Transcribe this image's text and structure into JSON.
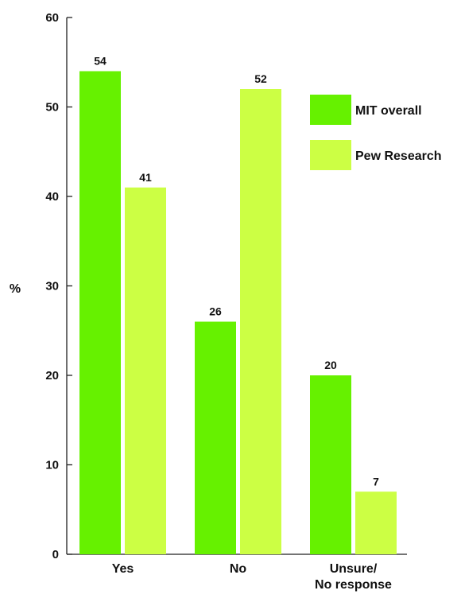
{
  "chart_data": {
    "type": "bar",
    "ylabel": "%",
    "xlabel": "",
    "ylim": [
      0,
      60
    ],
    "yticks": [
      0,
      10,
      20,
      30,
      40,
      50,
      60
    ],
    "categories": [
      [
        "Yes"
      ],
      [
        "No"
      ],
      [
        "Unsure/",
        "No response"
      ]
    ],
    "series": [
      {
        "name": "MIT overall",
        "color": "#66f100",
        "values": [
          54,
          26,
          20
        ]
      },
      {
        "name": "Pew Research",
        "color": "#ccff44",
        "values": [
          41,
          52,
          7
        ]
      }
    ],
    "legend_position": "top-right",
    "data_labels": true,
    "grid": false
  }
}
